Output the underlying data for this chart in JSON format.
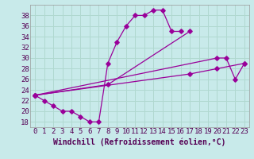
{
  "bg_color": "#c8eaea",
  "grid_color": "#b0d8d0",
  "line_color": "#990099",
  "marker_color": "#990099",
  "xlabel": "Windchill (Refroidissement éolien,°C)",
  "xlabel_fontsize": 7,
  "tick_fontsize": 6.5,
  "ylim": [
    17,
    40
  ],
  "xlim": [
    -0.5,
    23.5
  ],
  "yticks": [
    18,
    20,
    22,
    24,
    26,
    28,
    30,
    32,
    34,
    36,
    38
  ],
  "xticks": [
    0,
    1,
    2,
    3,
    4,
    5,
    6,
    7,
    8,
    9,
    10,
    11,
    12,
    13,
    14,
    15,
    16,
    17,
    18,
    19,
    20,
    21,
    22,
    23
  ],
  "line1": {
    "x": [
      0,
      1,
      2,
      3,
      4,
      5,
      6,
      7,
      8,
      9,
      10,
      11,
      12,
      13,
      14,
      15,
      16
    ],
    "y": [
      23,
      22,
      21,
      20,
      20,
      19,
      18,
      18,
      29,
      33,
      36,
      38,
      38,
      39,
      39,
      35,
      35
    ]
  },
  "line2": {
    "x": [
      0,
      8,
      17
    ],
    "y": [
      23,
      25,
      35
    ]
  },
  "line3": {
    "x": [
      0,
      20,
      21,
      22,
      23
    ],
    "y": [
      23,
      30,
      30,
      26,
      29
    ]
  },
  "line4": {
    "x": [
      0,
      17,
      20,
      23
    ],
    "y": [
      23,
      27,
      28,
      29
    ]
  }
}
